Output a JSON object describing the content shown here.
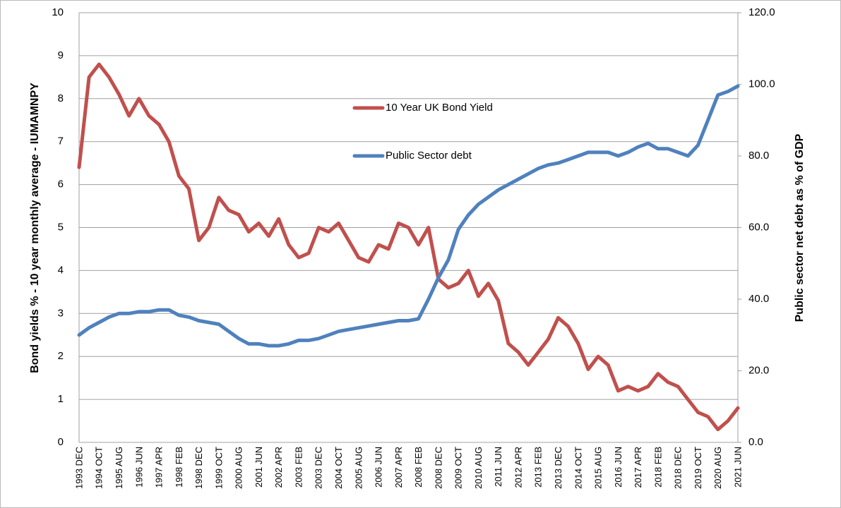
{
  "chart_data": {
    "type": "line",
    "categories": [
      "1993 DEC",
      null,
      "1994 OCT",
      null,
      "1995 AUG",
      null,
      "1996 JUN",
      null,
      "1997 APR",
      null,
      "1998 FEB",
      null,
      "1998 DEC",
      null,
      "1999 OCT",
      null,
      "2000 AUG",
      null,
      "2001 JUN",
      null,
      "2002 APR",
      null,
      "2003 FEB",
      null,
      "2003 DEC",
      null,
      "2004 OCT",
      null,
      "2005 AUG",
      null,
      "2006 JUN",
      null,
      "2007 APR",
      null,
      "2008 FEB",
      null,
      "2008 DEC",
      null,
      "2009 OCT",
      null,
      "2010 AUG",
      null,
      "2011 JUN",
      null,
      "2012 APR",
      null,
      "2013 FEB",
      null,
      "2013 DEC",
      null,
      "2014 OCT",
      null,
      "2015 AUG",
      null,
      "2016 JUN",
      null,
      "2017 APR",
      null,
      "2018 FEB",
      null,
      "2018 DEC",
      null,
      "2019 OCT",
      null,
      "2020 AUG",
      null,
      "2021 JUN"
    ],
    "series": [
      {
        "name": "10 Year UK Bond Yield",
        "color": "#c0504d",
        "axis": "y",
        "values": [
          6.4,
          8.5,
          8.8,
          8.5,
          8.1,
          7.6,
          8.0,
          7.6,
          7.4,
          7.0,
          6.2,
          5.9,
          4.7,
          5.0,
          5.7,
          5.4,
          5.3,
          4.9,
          5.1,
          4.8,
          5.2,
          4.6,
          4.3,
          4.4,
          5.0,
          4.9,
          5.1,
          4.7,
          4.3,
          4.2,
          4.6,
          4.5,
          5.1,
          5.0,
          4.6,
          5.0,
          3.8,
          3.6,
          3.7,
          4.0,
          3.4,
          3.7,
          3.3,
          2.3,
          2.1,
          1.8,
          2.1,
          2.4,
          2.9,
          2.7,
          2.3,
          1.7,
          2.0,
          1.8,
          1.2,
          1.3,
          1.2,
          1.3,
          1.6,
          1.4,
          1.3,
          1.0,
          0.7,
          0.6,
          0.3,
          0.5,
          0.8
        ]
      },
      {
        "name": "Public Sector debt",
        "color": "#4f81bd",
        "axis": "y2",
        "values": [
          30,
          32,
          33.5,
          35,
          36,
          36,
          36.5,
          36.5,
          37,
          37,
          35.5,
          35,
          34,
          33.5,
          33,
          31,
          29,
          27.5,
          27.5,
          27,
          27,
          27.5,
          28.5,
          28.5,
          29,
          30,
          31,
          31.5,
          32,
          32.5,
          33,
          33.5,
          34,
          34,
          34.5,
          40,
          46,
          51,
          59.5,
          63.5,
          66.5,
          68.5,
          70.5,
          72,
          73.5,
          75,
          76.5,
          77.5,
          78,
          79,
          80,
          81,
          81,
          81,
          80,
          81,
          82.5,
          83.5,
          82,
          82,
          81,
          80,
          83,
          90,
          97,
          98,
          99.5
        ]
      }
    ],
    "y_label": "Bond yields % - 10 year monthly average - IUMAMNPY",
    "y2_label": "Public sector net debt as % of GDP",
    "ylim": [
      0,
      10
    ],
    "yticks": [
      0,
      1,
      2,
      3,
      4,
      5,
      6,
      7,
      8,
      9,
      10
    ],
    "y2lim": [
      0,
      120
    ],
    "y2ticks": [
      {
        "value": 0,
        "label": "0.0"
      },
      {
        "value": 20,
        "label": "20.0"
      },
      {
        "value": 40,
        "label": "40.0"
      },
      {
        "value": 60,
        "label": "60.0"
      },
      {
        "value": 80,
        "label": "80.0"
      },
      {
        "value": 100,
        "label": "100.0"
      },
      {
        "value": 120,
        "label": "120.0"
      }
    ],
    "grid": true
  }
}
